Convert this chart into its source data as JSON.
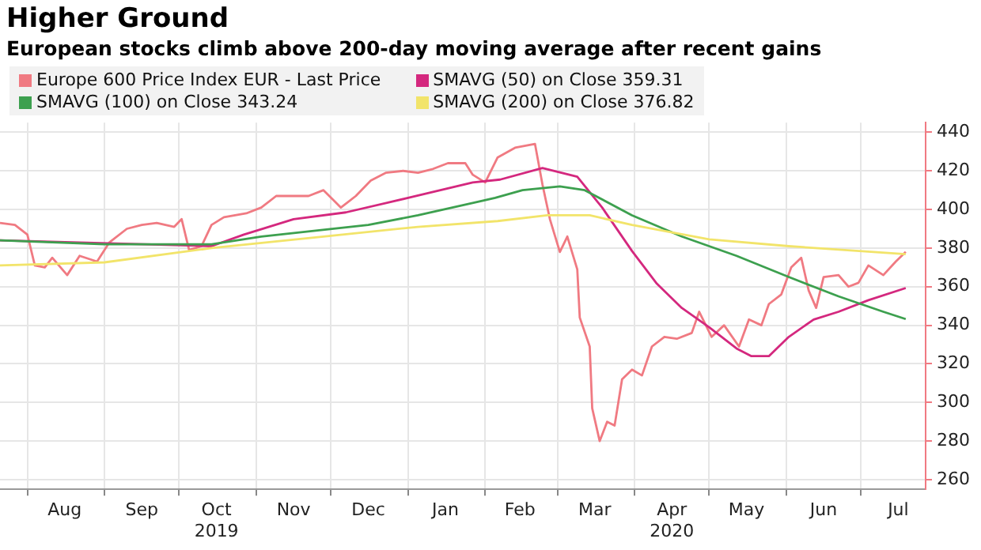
{
  "chart_data": {
    "type": "line",
    "title": "Higher Ground",
    "subtitle": "European stocks climb above 200-day moving average after recent gains",
    "xlim": [
      "2019-07-21",
      "2020-07-27"
    ],
    "xticks": [
      {
        "value": "2019-08-01",
        "label": null
      },
      {
        "value": "2019-08-16",
        "label": "Aug"
      },
      {
        "value": "2019-09-01",
        "label": null
      },
      {
        "value": "2019-09-16",
        "label": "Sep"
      },
      {
        "value": "2019-10-01",
        "label": null
      },
      {
        "value": "2019-10-16",
        "label": "Oct\n2019"
      },
      {
        "value": "2019-11-01",
        "label": null
      },
      {
        "value": "2019-11-16",
        "label": "Nov"
      },
      {
        "value": "2019-12-01",
        "label": null
      },
      {
        "value": "2019-12-16",
        "label": "Dec"
      },
      {
        "value": "2020-01-01",
        "label": null
      },
      {
        "value": "2020-01-16",
        "label": "Jan"
      },
      {
        "value": "2020-02-01",
        "label": null
      },
      {
        "value": "2020-02-15",
        "label": "Feb"
      },
      {
        "value": "2020-03-01",
        "label": null
      },
      {
        "value": "2020-03-16",
        "label": "Mar"
      },
      {
        "value": "2020-04-01",
        "label": null
      },
      {
        "value": "2020-04-16",
        "label": "Apr\n2020"
      },
      {
        "value": "2020-05-01",
        "label": null
      },
      {
        "value": "2020-05-16",
        "label": "May"
      },
      {
        "value": "2020-06-01",
        "label": null
      },
      {
        "value": "2020-06-16",
        "label": "Jun"
      },
      {
        "value": "2020-07-01",
        "label": null
      },
      {
        "value": "2020-07-16",
        "label": "Jul"
      }
    ],
    "ylim": [
      255,
      445
    ],
    "yticks": [
      260,
      280,
      300,
      320,
      340,
      360,
      380,
      400,
      420,
      440
    ],
    "grid": true,
    "legend": "top left",
    "marker": "none",
    "series": [
      {
        "name": "Europe 600 Price Index EUR - Last Price",
        "color": "#f07a82",
        "x": [
          "2019-07-21",
          "2019-07-27",
          "2019-08-01",
          "2019-08-04",
          "2019-08-08",
          "2019-08-11",
          "2019-08-17",
          "2019-08-22",
          "2019-08-29",
          "2019-09-03",
          "2019-09-10",
          "2019-09-16",
          "2019-09-22",
          "2019-09-29",
          "2019-10-02",
          "2019-10-05",
          "2019-10-10",
          "2019-10-14",
          "2019-10-19",
          "2019-10-28",
          "2019-11-03",
          "2019-11-09",
          "2019-11-16",
          "2019-11-22",
          "2019-11-28",
          "2019-12-05",
          "2019-12-11",
          "2019-12-17",
          "2019-12-23",
          "2019-12-30",
          "2020-01-05",
          "2020-01-11",
          "2020-01-17",
          "2020-01-24",
          "2020-01-27",
          "2020-02-01",
          "2020-02-06",
          "2020-02-13",
          "2020-02-21",
          "2020-02-24",
          "2020-02-27",
          "2020-03-02",
          "2020-03-05",
          "2020-03-09",
          "2020-03-10",
          "2020-03-14",
          "2020-03-15",
          "2020-03-18",
          "2020-03-21",
          "2020-03-24",
          "2020-03-27",
          "2020-03-31",
          "2020-04-04",
          "2020-04-08",
          "2020-04-13",
          "2020-04-18",
          "2020-04-24",
          "2020-04-27",
          "2020-05-02",
          "2020-05-07",
          "2020-05-13",
          "2020-05-17",
          "2020-05-22",
          "2020-05-25",
          "2020-05-30",
          "2020-06-03",
          "2020-06-07",
          "2020-06-10",
          "2020-06-13",
          "2020-06-16",
          "2020-06-22",
          "2020-06-26",
          "2020-06-30",
          "2020-07-04",
          "2020-07-10",
          "2020-07-15",
          "2020-07-19"
        ],
        "values": [
          393,
          392,
          387,
          371,
          370,
          375,
          366,
          376,
          373,
          383,
          390,
          392,
          393,
          391,
          395,
          379,
          381,
          392,
          396,
          398,
          401,
          407,
          407,
          407,
          410,
          401,
          407,
          415,
          419,
          420,
          419,
          421,
          424,
          424,
          418,
          414,
          427,
          432,
          434,
          413,
          395,
          378,
          386,
          369,
          344,
          329,
          297,
          280,
          290,
          288,
          312,
          317,
          314,
          329,
          334,
          333,
          336,
          347,
          334,
          340,
          329,
          343,
          340,
          351,
          356,
          370,
          375,
          358,
          349,
          365,
          366,
          360,
          362,
          371,
          366,
          373,
          378
        ]
      },
      {
        "name": "SMAVG (50) on Close 359.31",
        "color": "#d4287e",
        "x": [
          "2019-07-21",
          "2019-10-14",
          "2019-10-27",
          "2019-11-16",
          "2019-12-07",
          "2020-01-01",
          "2020-01-27",
          "2020-02-07",
          "2020-02-24",
          "2020-03-09",
          "2020-03-19",
          "2020-03-31",
          "2020-04-10",
          "2020-04-20",
          "2020-05-01",
          "2020-05-12",
          "2020-05-18",
          "2020-05-25",
          "2020-06-02",
          "2020-06-12",
          "2020-06-22",
          "2020-07-04",
          "2020-07-19"
        ],
        "values": [
          384,
          381,
          387,
          395,
          398.5,
          406,
          414,
          415.5,
          421.5,
          417,
          401,
          378.5,
          361.5,
          349,
          339,
          328,
          324,
          324,
          334,
          343,
          347,
          353,
          359.31
        ]
      },
      {
        "name": "SMAVG (100) on Close 343.24",
        "color": "#3da04f",
        "x": [
          "2019-07-21",
          "2019-09-01",
          "2019-10-14",
          "2019-11-03",
          "2019-12-16",
          "2020-01-05",
          "2020-02-05",
          "2020-02-16",
          "2020-03-02",
          "2020-03-12",
          "2020-03-31",
          "2020-04-20",
          "2020-05-12",
          "2020-06-02",
          "2020-06-22",
          "2020-07-10",
          "2020-07-19"
        ],
        "values": [
          384,
          382,
          382,
          386,
          392,
          397,
          406,
          410,
          412,
          410,
          397,
          386,
          376,
          365,
          355,
          347,
          343.24
        ]
      },
      {
        "name": "SMAVG (200) on Close 376.82",
        "color": "#f2e46a",
        "x": [
          "2019-07-21",
          "2019-09-01",
          "2019-10-14",
          "2019-11-28",
          "2020-01-05",
          "2020-02-06",
          "2020-02-26",
          "2020-03-14",
          "2020-03-31",
          "2020-05-01",
          "2020-06-02",
          "2020-07-19"
        ],
        "values": [
          371,
          372.6,
          380,
          386,
          391,
          394,
          397,
          397,
          392,
          384.5,
          381,
          376.82
        ]
      }
    ]
  }
}
